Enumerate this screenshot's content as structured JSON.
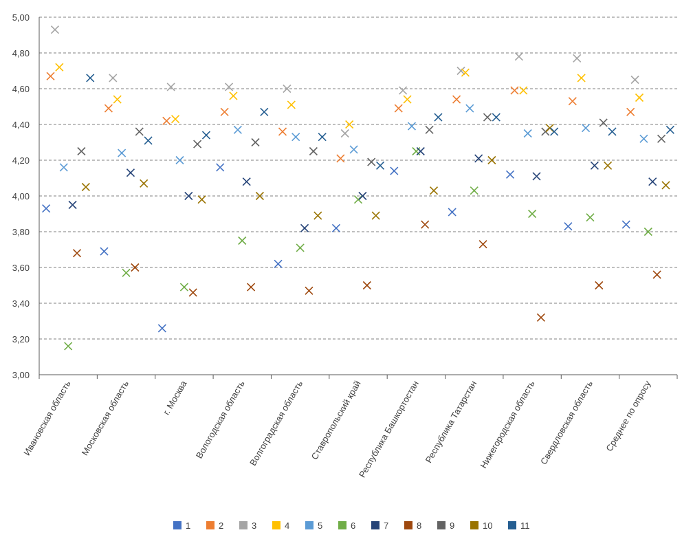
{
  "chart_data": {
    "type": "scatter",
    "ylim": [
      3.0,
      5.0
    ],
    "ytick_labels": [
      "3,00",
      "3,20",
      "3,40",
      "3,60",
      "3,80",
      "4,00",
      "4,20",
      "4,40",
      "4,60",
      "4,80",
      "5,00"
    ],
    "categories": [
      "Ивановская область",
      "Московская область",
      "г. Москва",
      "Вологодская область",
      "Волгоградская область",
      "Ставропольский край",
      "Республика Башкортостан",
      "Республика Татарстан",
      "Нижегородская область",
      "Свердловская область",
      "Среднее по опросу"
    ],
    "series": [
      {
        "name": "1",
        "color": "#4472c4",
        "values": [
          3.93,
          3.69,
          3.26,
          4.16,
          3.62,
          3.82,
          4.14,
          3.91,
          4.12,
          3.83,
          3.84
        ]
      },
      {
        "name": "2",
        "color": "#ed7d31",
        "values": [
          4.67,
          4.49,
          4.42,
          4.47,
          4.36,
          4.21,
          4.49,
          4.54,
          4.59,
          4.53,
          4.47
        ]
      },
      {
        "name": "3",
        "color": "#a5a5a5",
        "values": [
          4.93,
          4.66,
          4.61,
          4.61,
          4.6,
          4.35,
          4.59,
          4.7,
          4.78,
          4.77,
          4.65
        ]
      },
      {
        "name": "4",
        "color": "#ffc000",
        "values": [
          4.72,
          4.54,
          4.43,
          4.56,
          4.51,
          4.4,
          4.54,
          4.69,
          4.59,
          4.66,
          4.55
        ]
      },
      {
        "name": "5",
        "color": "#5b9bd5",
        "values": [
          4.16,
          4.24,
          4.2,
          4.37,
          4.33,
          4.26,
          4.39,
          4.49,
          4.35,
          4.38,
          4.32
        ]
      },
      {
        "name": "6",
        "color": "#70ad47",
        "values": [
          3.16,
          3.57,
          3.49,
          3.75,
          3.71,
          3.98,
          4.25,
          4.03,
          3.9,
          3.88,
          3.8
        ]
      },
      {
        "name": "7",
        "color": "#264478",
        "values": [
          3.95,
          4.13,
          4.0,
          4.08,
          3.82,
          4.0,
          4.25,
          4.21,
          4.11,
          4.17,
          4.08
        ]
      },
      {
        "name": "8",
        "color": "#9e480e",
        "values": [
          3.68,
          3.6,
          3.46,
          3.49,
          3.47,
          3.5,
          3.84,
          3.73,
          3.32,
          3.5,
          3.56
        ]
      },
      {
        "name": "9",
        "color": "#636363",
        "values": [
          4.25,
          4.36,
          4.29,
          4.3,
          4.25,
          4.19,
          4.37,
          4.44,
          4.36,
          4.41,
          4.32
        ]
      },
      {
        "name": "10",
        "color": "#997300",
        "values": [
          4.05,
          4.07,
          3.98,
          4.0,
          3.89,
          3.89,
          4.03,
          4.2,
          4.38,
          4.17,
          4.06
        ]
      },
      {
        "name": "11",
        "color": "#255e91",
        "values": [
          4.66,
          4.31,
          4.34,
          4.47,
          4.33,
          4.17,
          4.44,
          4.44,
          4.36,
          4.36,
          4.37
        ]
      }
    ],
    "grid": true,
    "grid_style": "dashed",
    "marker": "x",
    "legend": "bottom"
  }
}
